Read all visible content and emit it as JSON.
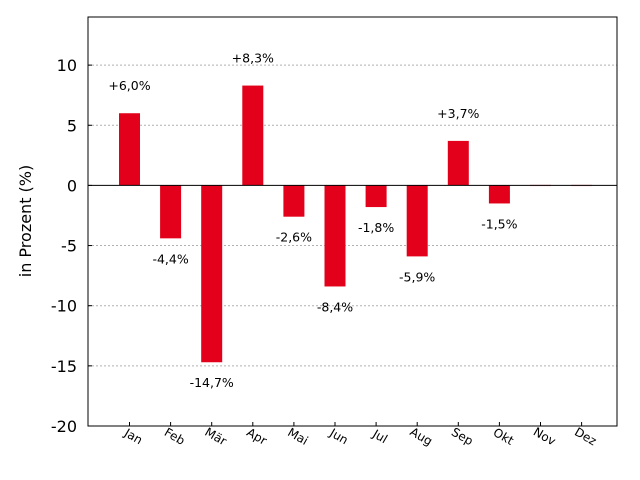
{
  "chart_data": {
    "type": "bar",
    "title": "",
    "xlabel": "",
    "ylabel": "in Prozent (%)",
    "ylim": [
      -20,
      14
    ],
    "yticks": [
      -20,
      -15,
      -10,
      -5,
      0,
      5,
      10
    ],
    "ytick_labels": [
      "-20",
      "-15",
      "-10",
      "-5",
      "0",
      "5",
      "10"
    ],
    "grid": true,
    "categories": [
      "Jan",
      "Feb",
      "Mär",
      "Apr",
      "Mai",
      "Jun",
      "Jul",
      "Aug",
      "Sep",
      "Okt",
      "Nov",
      "Dez"
    ],
    "values": [
      6.0,
      -4.4,
      -14.7,
      8.3,
      -2.6,
      -8.4,
      -1.8,
      -5.9,
      3.7,
      -1.5,
      0,
      0
    ],
    "data_labels": [
      "+6,0%",
      "-4,4%",
      "-14,7%",
      "+8,3%",
      "-2,6%",
      "-8,4%",
      "-1,8%",
      "-5,9%",
      "+3,7%",
      "-1,5%",
      "",
      ""
    ],
    "colors": {
      "bar": "#e2001a",
      "bar_empty": "#f2b3ba",
      "grid": "#b0b0b0",
      "axis": "#000000"
    }
  }
}
